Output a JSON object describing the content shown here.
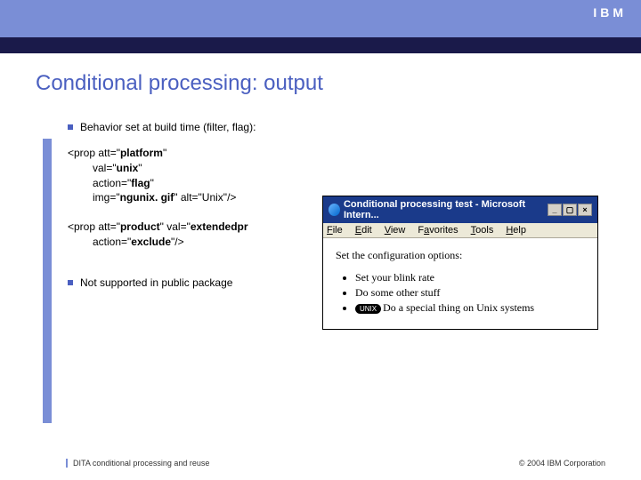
{
  "brand": {
    "logo_text": "IBM"
  },
  "slide": {
    "title": "Conditional processing: output",
    "bullet1": "Behavior set at build time (filter, flag):",
    "code1": {
      "line1": "<prop att=\"platform\"",
      "line2": "val=\"unix\"",
      "line3": "action=\"flag\"",
      "line4": "img=\"ngunix. gif\" alt=\"Unix\"/>"
    },
    "code2": {
      "line1": "<prop att=\"product\" val=\"extendedpr",
      "line2": "action=\"exclude\"/>"
    },
    "bullet2": "Not supported in public package"
  },
  "browser": {
    "title": "Conditional processing test - Microsoft Intern...",
    "menu": {
      "file": "File",
      "edit": "Edit",
      "view": "View",
      "favorites": "Favorites",
      "tools": "Tools",
      "help": "Help"
    },
    "body": {
      "heading": "Set the configuration options:",
      "items": [
        "Set your blink rate",
        "Do some other stuff",
        "Do a special thing on Unix systems"
      ],
      "unix_badge": "UNIX"
    },
    "controls": {
      "min": "_",
      "max": "▢",
      "close": "×"
    }
  },
  "footer": {
    "left": "DITA  conditional processing and reuse",
    "right": "© 2004 IBM Corporation"
  },
  "colors": {
    "header": "#7a8ed6",
    "strip": "#1a1a4a",
    "title": "#4a5fc0",
    "browser_title": "#1a3a8a"
  }
}
